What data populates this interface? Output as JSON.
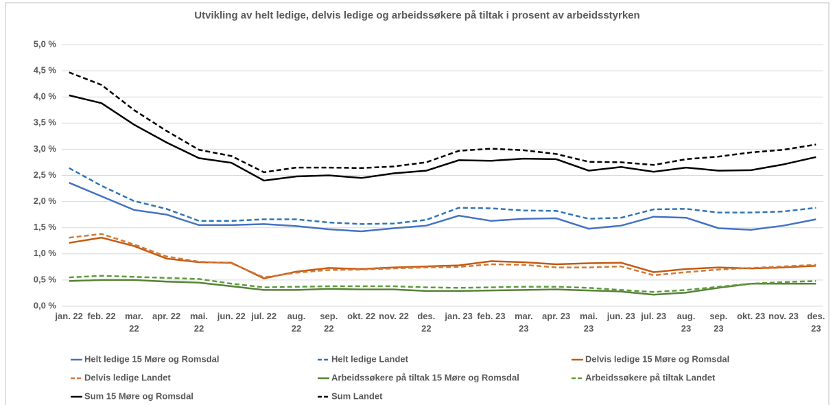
{
  "chart_data": {
    "type": "line",
    "title": "Utvikling av helt ledige, delvis ledige og arbeidssøkere på tiltak i prosent av arbeidsstyrken",
    "categories": [
      "jan. 22",
      "feb. 22",
      "mar. 22",
      "apr. 22",
      "mai. 22",
      "jun. 22",
      "jul. 22",
      "aug. 22",
      "sep. 22",
      "okt. 22",
      "nov. 22",
      "des. 22",
      "jan. 23",
      "feb. 23",
      "mar. 23",
      "apr. 23",
      "mai. 23",
      "jun. 23",
      "jul. 23",
      "aug. 23",
      "sep. 23",
      "okt. 23",
      "nov. 23",
      "des. 23"
    ],
    "ylim": [
      0,
      5
    ],
    "yticks": [
      {
        "value": 0,
        "label": "0,0 %"
      },
      {
        "value": 0.5,
        "label": "0,5 %"
      },
      {
        "value": 1,
        "label": "1,0 %"
      },
      {
        "value": 1.5,
        "label": "1,5 %"
      },
      {
        "value": 2,
        "label": "2,0 %"
      },
      {
        "value": 2.5,
        "label": "2,5 %"
      },
      {
        "value": 3,
        "label": "3,0 %"
      },
      {
        "value": 3.5,
        "label": "3,5 %"
      },
      {
        "value": 4,
        "label": "4,0 %"
      },
      {
        "value": 4.5,
        "label": "4,5 %"
      },
      {
        "value": 5,
        "label": "5,0 %"
      }
    ],
    "grid": true,
    "legend": "bottom",
    "series": [
      {
        "name": "Helt ledige 15 Møre og Romsdal",
        "color": "#4472c4",
        "dashed": false,
        "values": [
          2.36,
          2.1,
          1.84,
          1.75,
          1.55,
          1.55,
          1.57,
          1.53,
          1.47,
          1.43,
          1.49,
          1.54,
          1.73,
          1.63,
          1.67,
          1.68,
          1.48,
          1.54,
          1.71,
          1.69,
          1.49,
          1.46,
          1.54,
          1.66
        ]
      },
      {
        "name": "Helt ledige Landet",
        "color": "#2e75b6",
        "dashed": true,
        "values": [
          2.64,
          2.3,
          2.01,
          1.86,
          1.63,
          1.63,
          1.66,
          1.66,
          1.6,
          1.57,
          1.58,
          1.65,
          1.88,
          1.87,
          1.83,
          1.82,
          1.67,
          1.69,
          1.85,
          1.86,
          1.79,
          1.79,
          1.81,
          1.88
        ]
      },
      {
        "name": "Delvis ledige 15 Møre og Romsdal",
        "color": "#c55a11",
        "dashed": false,
        "values": [
          1.21,
          1.31,
          1.15,
          0.91,
          0.84,
          0.83,
          0.53,
          0.66,
          0.73,
          0.71,
          0.74,
          0.76,
          0.78,
          0.86,
          0.84,
          0.8,
          0.82,
          0.83,
          0.65,
          0.71,
          0.74,
          0.72,
          0.74,
          0.77
        ]
      },
      {
        "name": "Delvis ledige Landet",
        "color": "#d07a3a",
        "dashed": true,
        "values": [
          1.31,
          1.38,
          1.18,
          0.95,
          0.85,
          0.82,
          0.55,
          0.64,
          0.69,
          0.7,
          0.72,
          0.74,
          0.75,
          0.8,
          0.79,
          0.74,
          0.74,
          0.76,
          0.59,
          0.65,
          0.7,
          0.73,
          0.76,
          0.79
        ]
      },
      {
        "name": "Arbeidssøkere på tiltak 15 Møre og Romsdal",
        "color": "#548235",
        "dashed": false,
        "values": [
          0.48,
          0.5,
          0.5,
          0.47,
          0.45,
          0.38,
          0.31,
          0.31,
          0.33,
          0.32,
          0.32,
          0.29,
          0.29,
          0.3,
          0.31,
          0.32,
          0.3,
          0.28,
          0.22,
          0.26,
          0.35,
          0.43,
          0.43,
          0.43
        ]
      },
      {
        "name": "Arbeidssøkere på tiltak Landet",
        "color": "#5e9a3c",
        "dashed": true,
        "values": [
          0.55,
          0.58,
          0.56,
          0.54,
          0.52,
          0.43,
          0.36,
          0.37,
          0.38,
          0.38,
          0.38,
          0.36,
          0.35,
          0.36,
          0.37,
          0.37,
          0.35,
          0.31,
          0.27,
          0.31,
          0.37,
          0.43,
          0.46,
          0.48
        ]
      },
      {
        "name": "Sum 15 Møre og Romsdal",
        "color": "#000000",
        "dashed": false,
        "values": [
          4.03,
          3.88,
          3.47,
          3.13,
          2.83,
          2.74,
          2.4,
          2.48,
          2.5,
          2.45,
          2.54,
          2.59,
          2.79,
          2.78,
          2.82,
          2.81,
          2.59,
          2.66,
          2.57,
          2.65,
          2.59,
          2.6,
          2.71,
          2.85
        ]
      },
      {
        "name": "Sum Landet",
        "color": "#000000",
        "dashed": true,
        "values": [
          4.47,
          4.23,
          3.75,
          3.35,
          2.99,
          2.87,
          2.56,
          2.65,
          2.65,
          2.64,
          2.67,
          2.75,
          2.97,
          3.01,
          2.98,
          2.91,
          2.76,
          2.75,
          2.7,
          2.81,
          2.86,
          2.94,
          2.99,
          3.09
        ]
      }
    ]
  }
}
